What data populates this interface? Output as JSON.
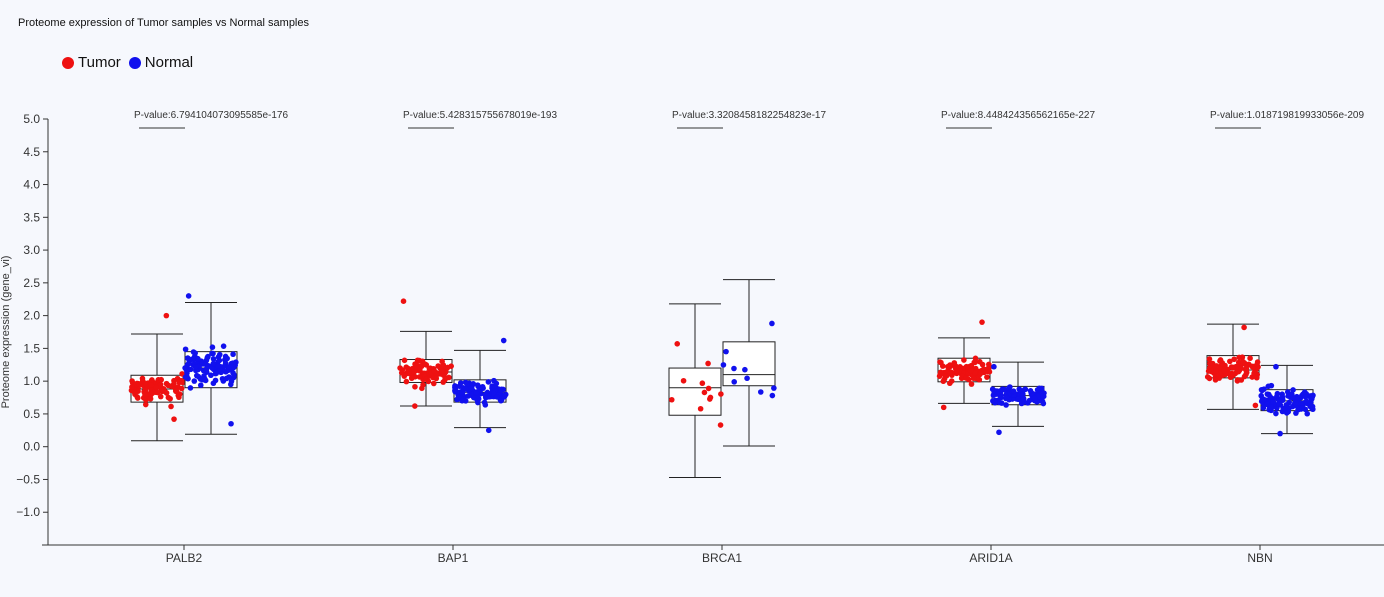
{
  "title": "Proteome expression of Tumor samples vs Normal samples",
  "legend": {
    "tumor_label": "Tumor",
    "normal_label": "Normal",
    "tumor_color": "#ee1111",
    "normal_color": "#1111ee"
  },
  "chart_data": {
    "type": "box",
    "title": "Proteome expression of Tumor samples vs Normal samples",
    "ylabel": "Proteome expression (gene_vi)",
    "xlabel": "",
    "ylim": [
      -1.5,
      5.0
    ],
    "yticks": [
      "5.0",
      "4.5",
      "4.0",
      "3.5",
      "3.0",
      "2.5",
      "2.0",
      "1.5",
      "1.0",
      "0.5",
      "0.0",
      "−0.5",
      "−1.0"
    ],
    "ytick_values": [
      5.0,
      4.5,
      4.0,
      3.5,
      3.0,
      2.5,
      2.0,
      1.5,
      1.0,
      0.5,
      0.0,
      -0.5,
      -1.0
    ],
    "categories": [
      "PALB2",
      "BAP1",
      "BRCA1",
      "ARID1A",
      "NBN"
    ],
    "groups": [
      {
        "gene": "PALB2",
        "pvalue_label": "P-value:6.794104073095585e-176",
        "tumor": {
          "min": 0.09,
          "q1": 0.68,
          "median": 0.88,
          "q3": 1.09,
          "max": 1.72,
          "n": 100,
          "spread": [
            0.42,
            2.0
          ]
        },
        "normal": {
          "min": 0.19,
          "q1": 0.9,
          "median": 1.2,
          "q3": 1.45,
          "max": 2.2,
          "n": 110,
          "spread": [
            0.35,
            2.3
          ]
        }
      },
      {
        "gene": "BAP1",
        "pvalue_label": "P-value:5.428315755678019e-193",
        "tumor": {
          "min": 0.62,
          "q1": 0.98,
          "median": 1.14,
          "q3": 1.33,
          "max": 1.76,
          "n": 90,
          "spread": [
            0.62,
            2.22
          ]
        },
        "normal": {
          "min": 0.29,
          "q1": 0.68,
          "median": 0.83,
          "q3": 1.02,
          "max": 1.47,
          "n": 110,
          "spread": [
            0.25,
            1.62
          ]
        }
      },
      {
        "gene": "BRCA1",
        "pvalue_label": "P-value:3.3208458182254823e-17",
        "tumor": {
          "min": -0.47,
          "q1": 0.48,
          "median": 0.9,
          "q3": 1.2,
          "max": 2.18,
          "n": 12,
          "spread": [
            0.33,
            1.57
          ]
        },
        "normal": {
          "min": 0.01,
          "q1": 0.93,
          "median": 1.1,
          "q3": 1.6,
          "max": 2.55,
          "n": 10,
          "spread": [
            0.78,
            1.88
          ]
        }
      },
      {
        "gene": "ARID1A",
        "pvalue_label": "P-value:8.448424356562165e-227",
        "tumor": {
          "min": 0.66,
          "q1": 0.99,
          "median": 1.13,
          "q3": 1.35,
          "max": 1.66,
          "n": 110,
          "spread": [
            0.6,
            1.9
          ]
        },
        "normal": {
          "min": 0.31,
          "q1": 0.64,
          "median": 0.78,
          "q3": 0.92,
          "max": 1.29,
          "n": 110,
          "spread": [
            0.22,
            1.22
          ]
        }
      },
      {
        "gene": "NBN",
        "pvalue_label": "P-value:1.018719819933056e-209",
        "tumor": {
          "min": 0.57,
          "q1": 1.05,
          "median": 1.17,
          "q3": 1.39,
          "max": 1.87,
          "n": 100,
          "spread": [
            0.63,
            1.82
          ]
        },
        "normal": {
          "min": 0.2,
          "q1": 0.55,
          "median": 0.7,
          "q3": 0.87,
          "max": 1.24,
          "n": 110,
          "spread": [
            0.2,
            1.22
          ]
        }
      }
    ]
  }
}
